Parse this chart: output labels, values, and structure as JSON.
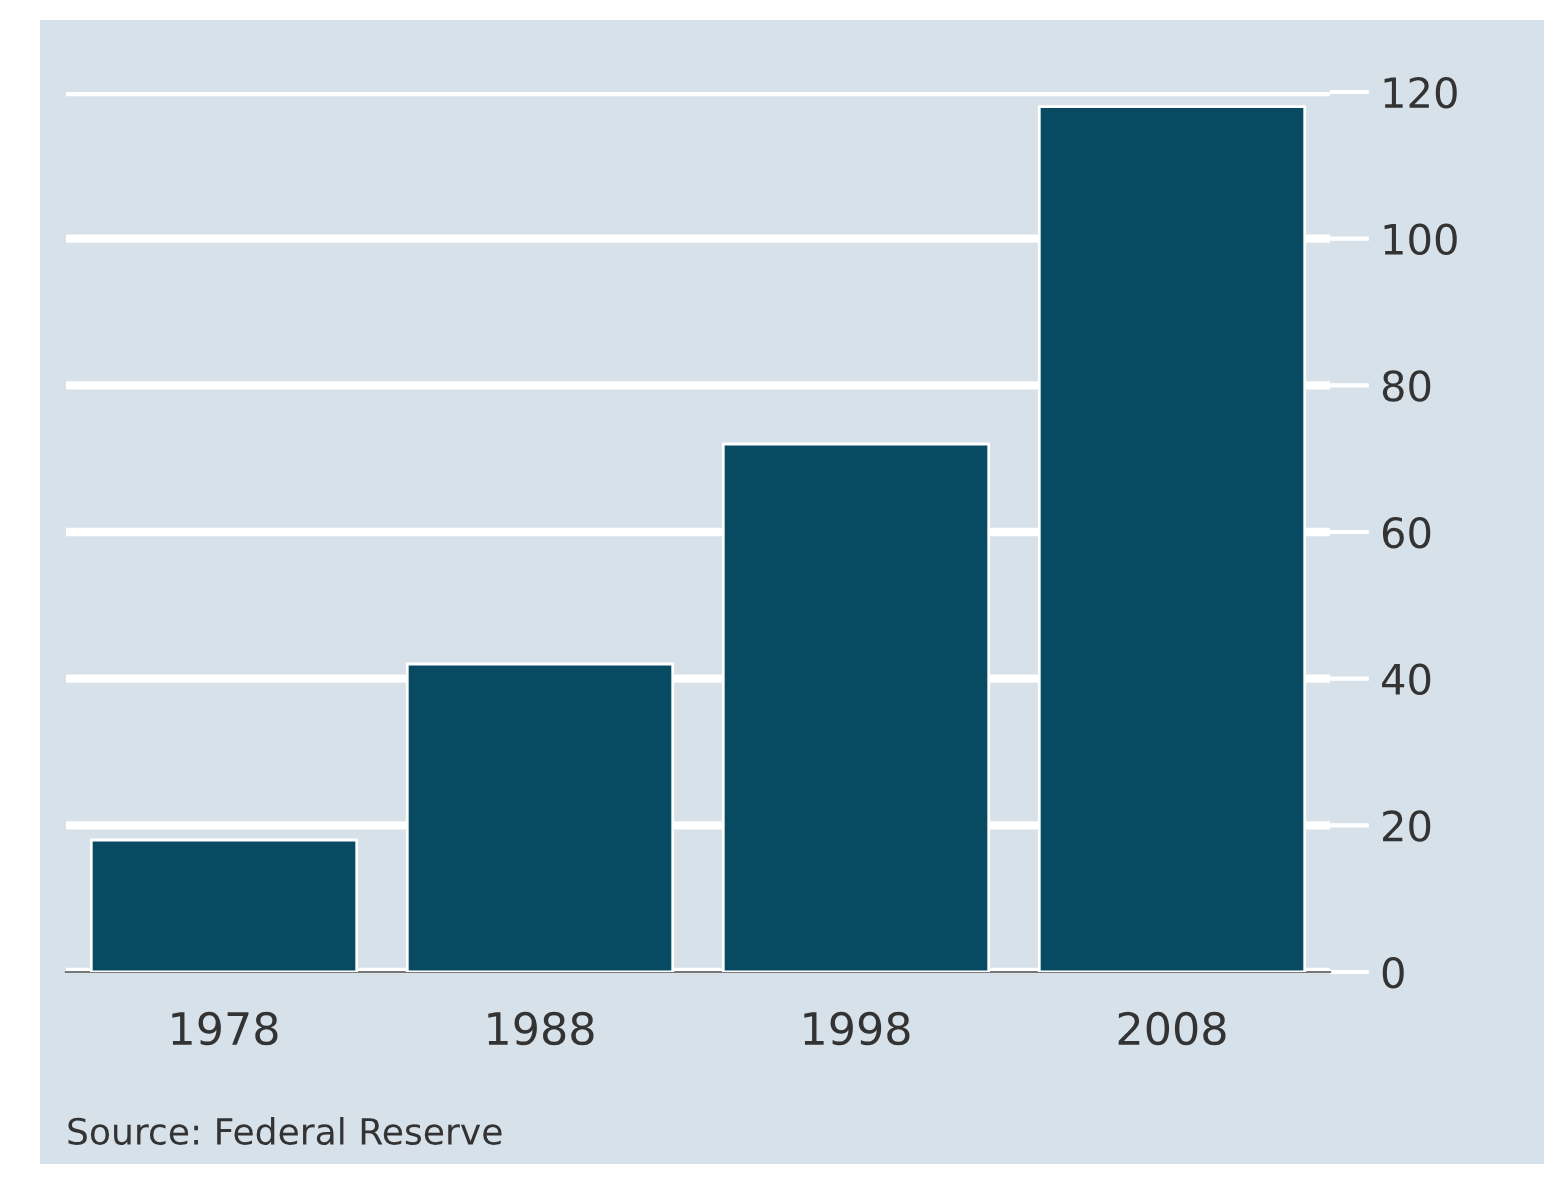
{
  "chart_data": {
    "type": "bar",
    "categories": [
      "1978",
      "1988",
      "1998",
      "2008"
    ],
    "values": [
      18,
      42,
      72,
      118
    ],
    "color": "#084a62",
    "ylim": [
      0,
      120
    ],
    "yticks": [
      0,
      20,
      40,
      60,
      80,
      100,
      120
    ],
    "grid": "y",
    "annotations": [
      "Source: Federal Reserve"
    ]
  }
}
